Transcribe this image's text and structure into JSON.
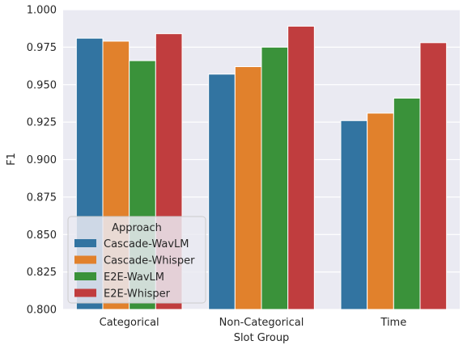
{
  "chart_data": {
    "type": "bar",
    "title": "",
    "xlabel": "Slot Group",
    "ylabel": "F1",
    "ylim": [
      0.8,
      1.0
    ],
    "yticks": [
      "0.800",
      "0.825",
      "0.850",
      "0.875",
      "0.900",
      "0.925",
      "0.950",
      "0.975",
      "1.000"
    ],
    "categories": [
      "Categorical",
      "Non-Categorical",
      "Time"
    ],
    "series": [
      {
        "name": "Cascade-WavLM",
        "color": "#3274a1",
        "values": [
          0.981,
          0.957,
          0.926
        ]
      },
      {
        "name": "Cascade-Whisper",
        "color": "#e1812c",
        "values": [
          0.979,
          0.962,
          0.931
        ]
      },
      {
        "name": "E2E-WavLM",
        "color": "#3a923a",
        "values": [
          0.966,
          0.975,
          0.941
        ]
      },
      {
        "name": "E2E-Whisper",
        "color": "#c03d3e",
        "values": [
          0.984,
          0.989,
          0.978
        ]
      }
    ],
    "legend": {
      "title": "Approach",
      "position": "lower-left"
    },
    "grid": true,
    "background": "#eaeaf2",
    "grid_color": "#ffffff"
  }
}
